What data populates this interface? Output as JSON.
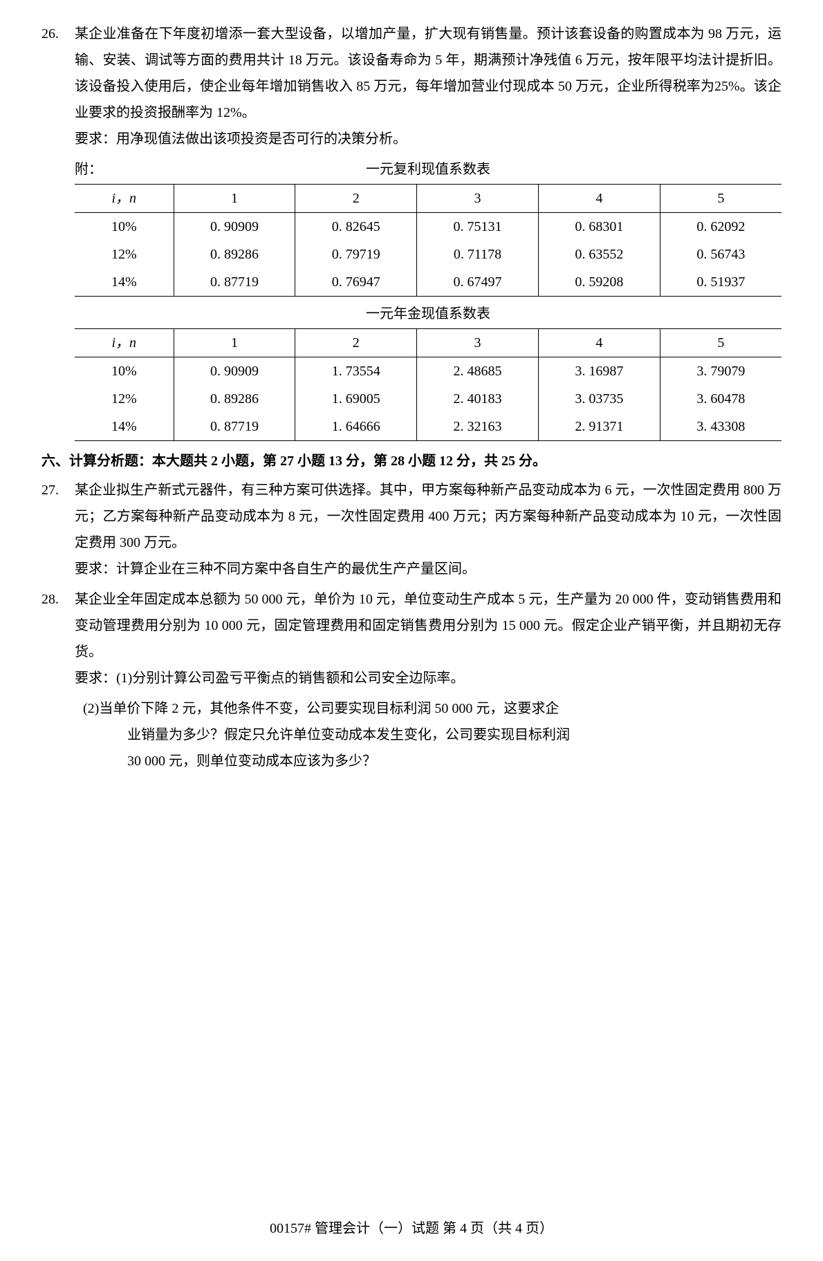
{
  "q26": {
    "num": "26.",
    "body": "某企业准备在下年度初增添一套大型设备，以增加产量，扩大现有销售量。预计该套设备的购置成本为 98 万元，运输、安装、调试等方面的费用共计 18 万元。该设备寿命为 5 年，期满预计净残值 6 万元，按年限平均法计提折旧。该设备投入使用后，使企业每年增加销售收入 85 万元，每年增加营业付现成本 50 万元，企业所得税率为25%。该企业要求的投资报酬率为 12%。",
    "req": "要求：用净现值法做出该项投资是否可行的决策分析。",
    "attach_label": "附：",
    "table1_title": "一元复利现值系数表",
    "table2_title": "一元年金现值系数表",
    "table1": {
      "header": [
        "i，n",
        "1",
        "2",
        "3",
        "4",
        "5"
      ],
      "rows": [
        [
          "10%",
          "0. 90909",
          "0. 82645",
          "0. 75131",
          "0. 68301",
          "0. 62092"
        ],
        [
          "12%",
          "0. 89286",
          "0. 79719",
          "0. 71178",
          "0. 63552",
          "0. 56743"
        ],
        [
          "14%",
          "0. 87719",
          "0. 76947",
          "0. 67497",
          "0. 59208",
          "0. 51937"
        ]
      ]
    },
    "table2": {
      "header": [
        "i，n",
        "1",
        "2",
        "3",
        "4",
        "5"
      ],
      "rows": [
        [
          "10%",
          "0. 90909",
          "1. 73554",
          "2. 48685",
          "3. 16987",
          "3. 79079"
        ],
        [
          "12%",
          "0. 89286",
          "1. 69005",
          "2. 40183",
          "3. 03735",
          "3. 60478"
        ],
        [
          "14%",
          "0. 87719",
          "1. 64666",
          "2. 32163",
          "2. 91371",
          "3. 43308"
        ]
      ]
    }
  },
  "section6": "六、计算分析题：本大题共 2 小题，第 27 小题 13 分，第 28 小题 12 分，共 25 分。",
  "q27": {
    "num": "27.",
    "body": "某企业拟生产新式元器件，有三种方案可供选择。其中，甲方案每种新产品变动成本为 6 元，一次性固定费用 800 万元；乙方案每种新产品变动成本为 8 元，一次性固定费用 400 万元；丙方案每种新产品变动成本为 10 元，一次性固定费用 300 万元。",
    "req": "要求：计算企业在三种不同方案中各自生产的最优生产产量区间。"
  },
  "q28": {
    "num": "28.",
    "body": "某企业全年固定成本总额为 50 000 元，单价为 10 元，单位变动生产成本 5 元，生产量为 20 000 件，变动销售费用和变动管理费用分别为 10 000 元，固定管理费用和固定销售费用分别为 15 000 元。假定企业产销平衡，并且期初无存货。",
    "req1": "要求：(1)分别计算公司盈亏平衡点的销售额和公司安全边际率。",
    "req2a": "(2)当单价下降 2 元，其他条件不变，公司要实现目标利润 50 000 元，这要求企",
    "req2b": "业销量为多少？假定只允许单位变动成本发生变化，公司要实现目标利润",
    "req2c": "30 000 元，则单位变动成本应该为多少？"
  },
  "footer": "00157# 管理会计（一）试题 第 4 页（共 4 页）"
}
